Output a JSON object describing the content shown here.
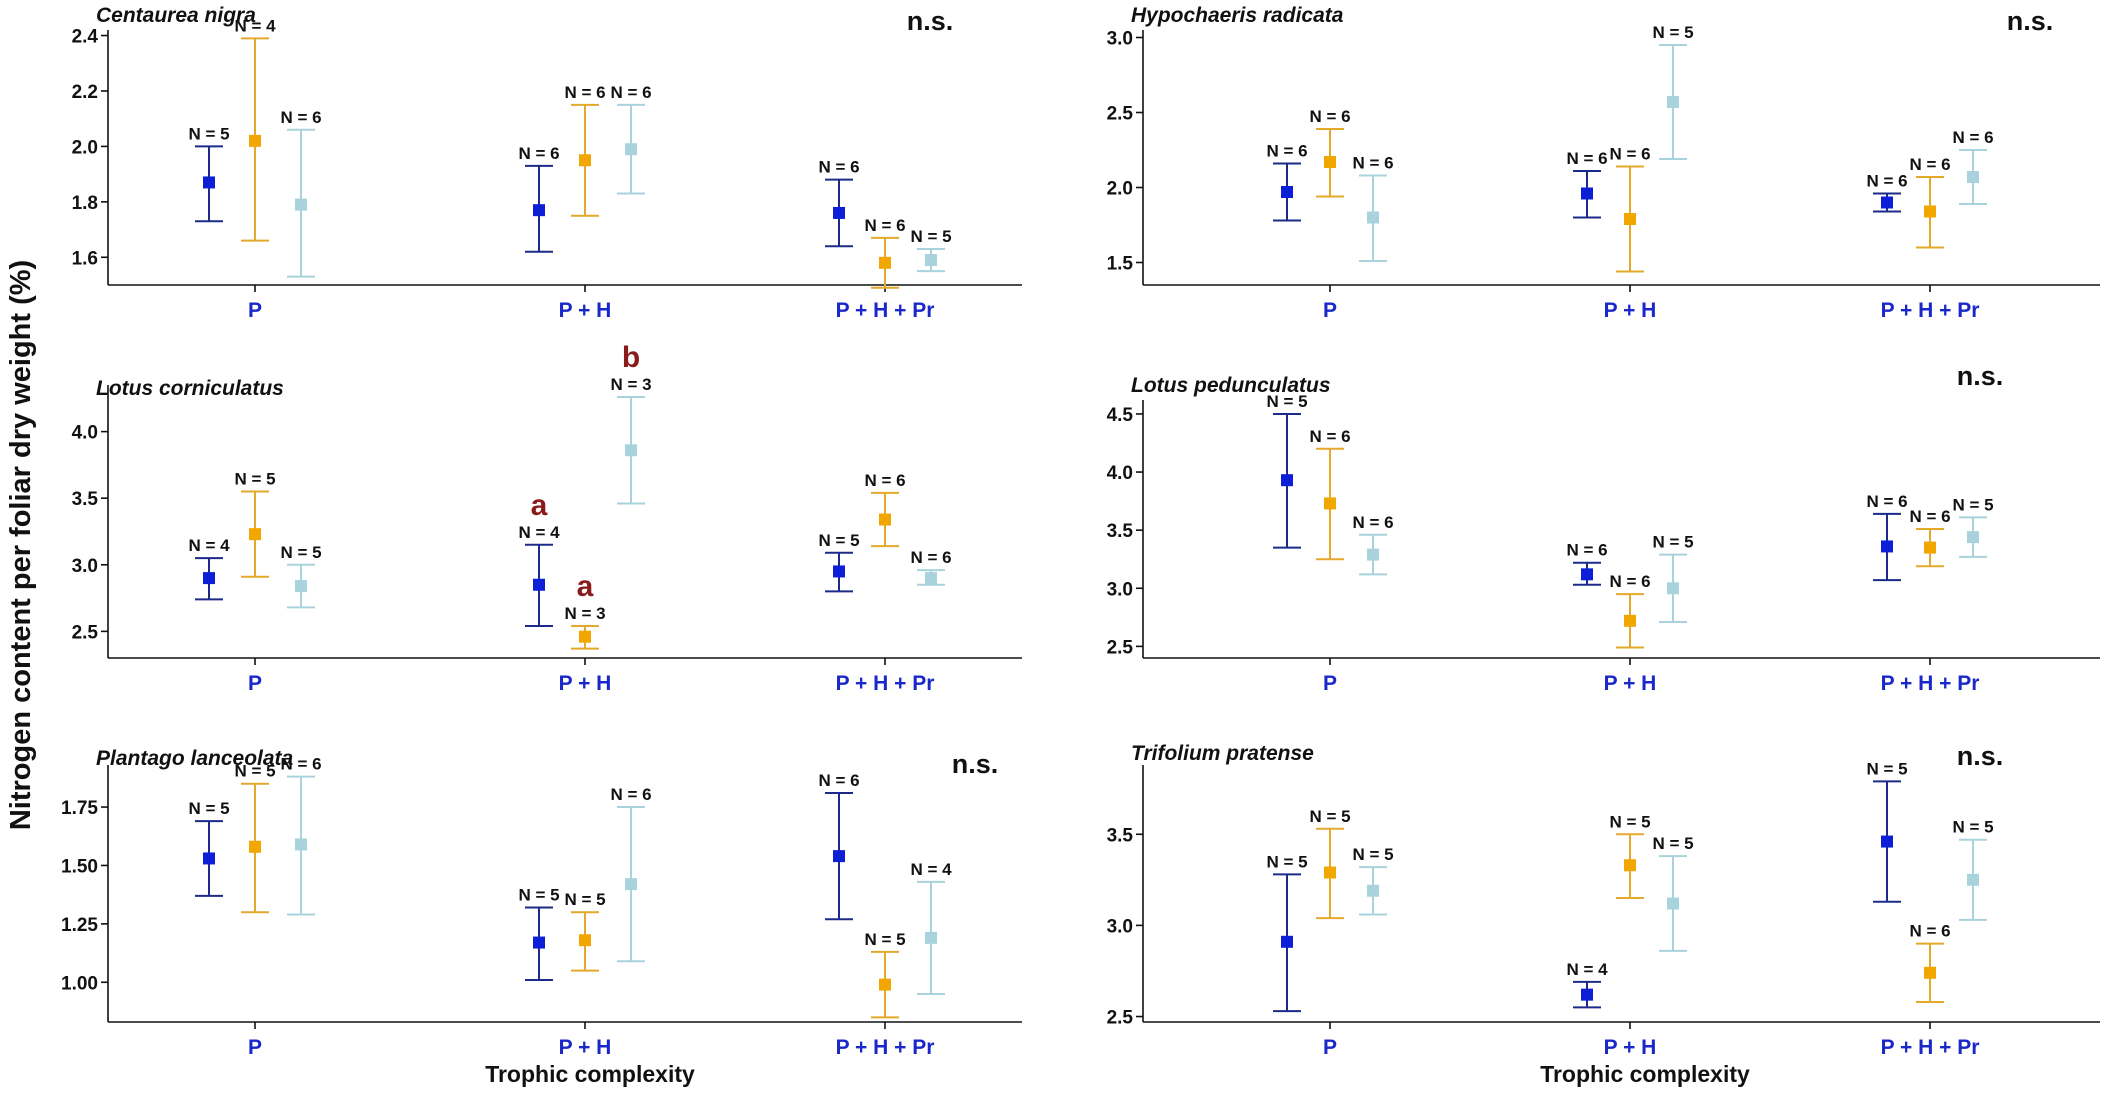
{
  "figure": {
    "ylabel": "Nitrogen content per foliar dry weight (%)",
    "xlabel": "Trophic complexity"
  },
  "series_colors": [
    "#1c2a8a",
    "#e3a92b",
    "#a9d3dc"
  ],
  "marker_colors": [
    "#0d1fd6",
    "#f2a700",
    "#a9d3dc"
  ],
  "chart_data": [
    {
      "type": "scatter",
      "title": "Centaurea nigra",
      "significance": "n.s.",
      "categories": [
        "P",
        "P + H",
        "P + H + Pr"
      ],
      "ylim": [
        1.5,
        2.42
      ],
      "yticks": [
        1.6,
        1.8,
        2.0,
        2.2,
        2.4
      ],
      "ytick_labels": [
        "1.6",
        "1.8",
        "2.0",
        "2.2",
        "2.4"
      ],
      "points": [
        [
          {
            "mean": 1.87,
            "low": 1.73,
            "high": 2.0,
            "n_label": "N = 5"
          },
          {
            "mean": 2.02,
            "low": 1.66,
            "high": 2.39,
            "n_label": "N = 4"
          },
          {
            "mean": 1.79,
            "low": 1.53,
            "high": 2.06,
            "n_label": "N = 6"
          }
        ],
        [
          {
            "mean": 1.77,
            "low": 1.62,
            "high": 1.93,
            "n_label": "N = 6"
          },
          {
            "mean": 1.95,
            "low": 1.75,
            "high": 2.15,
            "n_label": "N = 6"
          },
          {
            "mean": 1.99,
            "low": 1.83,
            "high": 2.15,
            "n_label": "N = 6"
          }
        ],
        [
          {
            "mean": 1.76,
            "low": 1.64,
            "high": 1.88,
            "n_label": "N = 6"
          },
          {
            "mean": 1.58,
            "low": 1.49,
            "high": 1.67,
            "n_label": "N = 6"
          },
          {
            "mean": 1.59,
            "low": 1.55,
            "high": 1.63,
            "n_label": "N = 5"
          }
        ]
      ]
    },
    {
      "type": "scatter",
      "title": "Hypochaeris radicata",
      "significance": "n.s.",
      "categories": [
        "P",
        "P + H",
        "P + H + Pr"
      ],
      "ylim": [
        1.35,
        3.05
      ],
      "yticks": [
        1.5,
        2.0,
        2.5,
        3.0
      ],
      "ytick_labels": [
        "1.5",
        "2.0",
        "2.5",
        "3.0"
      ],
      "points": [
        [
          {
            "mean": 1.97,
            "low": 1.78,
            "high": 2.16,
            "n_label": "N = 6"
          },
          {
            "mean": 2.17,
            "low": 1.94,
            "high": 2.39,
            "n_label": "N = 6"
          },
          {
            "mean": 1.8,
            "low": 1.51,
            "high": 2.08,
            "n_label": "N = 6"
          }
        ],
        [
          {
            "mean": 1.96,
            "low": 1.8,
            "high": 2.11,
            "n_label": "N = 6"
          },
          {
            "mean": 1.79,
            "low": 1.44,
            "high": 2.14,
            "n_label": "N = 6"
          },
          {
            "mean": 2.57,
            "low": 2.19,
            "high": 2.95,
            "n_label": "N = 5"
          }
        ],
        [
          {
            "mean": 1.9,
            "low": 1.84,
            "high": 1.96,
            "n_label": "N = 6"
          },
          {
            "mean": 1.84,
            "low": 1.6,
            "high": 2.07,
            "n_label": "N = 6"
          },
          {
            "mean": 2.07,
            "low": 1.89,
            "high": 2.25,
            "n_label": "N = 6"
          }
        ]
      ]
    },
    {
      "type": "scatter",
      "title": "Lotus corniculatus",
      "significance": "",
      "categories": [
        "P",
        "P + H",
        "P + H + Pr"
      ],
      "ylim": [
        2.3,
        4.35
      ],
      "yticks": [
        2.5,
        3.0,
        3.5,
        4.0
      ],
      "ytick_labels": [
        "2.5",
        "3.0",
        "3.5",
        "4.0"
      ],
      "points": [
        [
          {
            "mean": 2.9,
            "low": 2.74,
            "high": 3.05,
            "n_label": "N = 4"
          },
          {
            "mean": 3.23,
            "low": 2.91,
            "high": 3.55,
            "n_label": "N = 5"
          },
          {
            "mean": 2.84,
            "low": 2.68,
            "high": 3.0,
            "n_label": "N = 5"
          }
        ],
        [
          {
            "mean": 2.85,
            "low": 2.54,
            "high": 3.15,
            "n_label": "N = 4",
            "letter": "a"
          },
          {
            "mean": 2.46,
            "low": 2.37,
            "high": 2.54,
            "n_label": "N = 3",
            "letter": "a"
          },
          {
            "mean": 3.86,
            "low": 3.46,
            "high": 4.26,
            "n_label": "N = 3",
            "letter": "b"
          }
        ],
        [
          {
            "mean": 2.95,
            "low": 2.8,
            "high": 3.09,
            "n_label": "N = 5"
          },
          {
            "mean": 3.34,
            "low": 3.14,
            "high": 3.54,
            "n_label": "N = 6"
          },
          {
            "mean": 2.9,
            "low": 2.85,
            "high": 2.96,
            "n_label": "N = 6"
          }
        ]
      ]
    },
    {
      "type": "scatter",
      "title": "Lotus pedunculatus",
      "significance": "n.s.",
      "categories": [
        "P",
        "P + H",
        "P + H + Pr"
      ],
      "ylim": [
        2.4,
        4.62
      ],
      "yticks": [
        2.5,
        3.0,
        3.5,
        4.0,
        4.5
      ],
      "ytick_labels": [
        "2.5",
        "3.0",
        "3.5",
        "4.0",
        "4.5"
      ],
      "points": [
        [
          {
            "mean": 3.93,
            "low": 3.35,
            "high": 4.5,
            "n_label": "N = 5"
          },
          {
            "mean": 3.73,
            "low": 3.25,
            "high": 4.2,
            "n_label": "N = 6"
          },
          {
            "mean": 3.29,
            "low": 3.12,
            "high": 3.46,
            "n_label": "N = 6"
          }
        ],
        [
          {
            "mean": 3.12,
            "low": 3.03,
            "high": 3.22,
            "n_label": "N = 6"
          },
          {
            "mean": 2.72,
            "low": 2.49,
            "high": 2.95,
            "n_label": "N = 6"
          },
          {
            "mean": 3.0,
            "low": 2.71,
            "high": 3.29,
            "n_label": "N = 5"
          }
        ],
        [
          {
            "mean": 3.36,
            "low": 3.07,
            "high": 3.64,
            "n_label": "N = 6"
          },
          {
            "mean": 3.35,
            "low": 3.19,
            "high": 3.51,
            "n_label": "N = 6"
          },
          {
            "mean": 3.44,
            "low": 3.27,
            "high": 3.61,
            "n_label": "N = 5"
          }
        ]
      ]
    },
    {
      "type": "scatter",
      "title": "Plantago lanceolata",
      "significance": "n.s.",
      "categories": [
        "P",
        "P + H",
        "P + H + Pr"
      ],
      "ylim": [
        0.83,
        1.93
      ],
      "yticks": [
        1.0,
        1.25,
        1.5,
        1.75
      ],
      "ytick_labels": [
        "1.00",
        "1.25",
        "1.50",
        "1.75"
      ],
      "points": [
        [
          {
            "mean": 1.53,
            "low": 1.37,
            "high": 1.69,
            "n_label": "N = 5"
          },
          {
            "mean": 1.58,
            "low": 1.3,
            "high": 1.85,
            "n_label": "N = 5"
          },
          {
            "mean": 1.59,
            "low": 1.29,
            "high": 1.88,
            "n_label": "N = 6"
          }
        ],
        [
          {
            "mean": 1.17,
            "low": 1.01,
            "high": 1.32,
            "n_label": "N = 5"
          },
          {
            "mean": 1.18,
            "low": 1.05,
            "high": 1.3,
            "n_label": "N = 5"
          },
          {
            "mean": 1.42,
            "low": 1.09,
            "high": 1.75,
            "n_label": "N = 6"
          }
        ],
        [
          {
            "mean": 1.54,
            "low": 1.27,
            "high": 1.81,
            "n_label": "N = 6"
          },
          {
            "mean": 0.99,
            "low": 0.85,
            "high": 1.13,
            "n_label": "N = 5"
          },
          {
            "mean": 1.19,
            "low": 0.95,
            "high": 1.43,
            "n_label": "N = 4"
          }
        ]
      ]
    },
    {
      "type": "scatter",
      "title": "Trifolium pratense",
      "significance": "n.s.",
      "categories": [
        "P",
        "P + H",
        "P + H + Pr"
      ],
      "ylim": [
        2.47,
        3.88
      ],
      "yticks": [
        2.5,
        3.0,
        3.5
      ],
      "ytick_labels": [
        "2.5",
        "3.0",
        "3.5"
      ],
      "points": [
        [
          {
            "mean": 2.91,
            "low": 2.53,
            "high": 3.28,
            "n_label": "N = 5"
          },
          {
            "mean": 3.29,
            "low": 3.04,
            "high": 3.53,
            "n_label": "N = 5"
          },
          {
            "mean": 3.19,
            "low": 3.06,
            "high": 3.32,
            "n_label": "N = 5"
          }
        ],
        [
          {
            "mean": 2.62,
            "low": 2.55,
            "high": 2.69,
            "n_label": "N = 4"
          },
          {
            "mean": 3.33,
            "low": 3.15,
            "high": 3.5,
            "n_label": "N = 5"
          },
          {
            "mean": 3.12,
            "low": 2.86,
            "high": 3.38,
            "n_label": "N = 5"
          }
        ],
        [
          {
            "mean": 3.46,
            "low": 3.13,
            "high": 3.79,
            "n_label": "N = 5"
          },
          {
            "mean": 2.74,
            "low": 2.58,
            "high": 2.9,
            "n_label": "N = 6"
          },
          {
            "mean": 3.25,
            "low": 3.03,
            "high": 3.47,
            "n_label": "N = 5"
          }
        ]
      ]
    }
  ]
}
